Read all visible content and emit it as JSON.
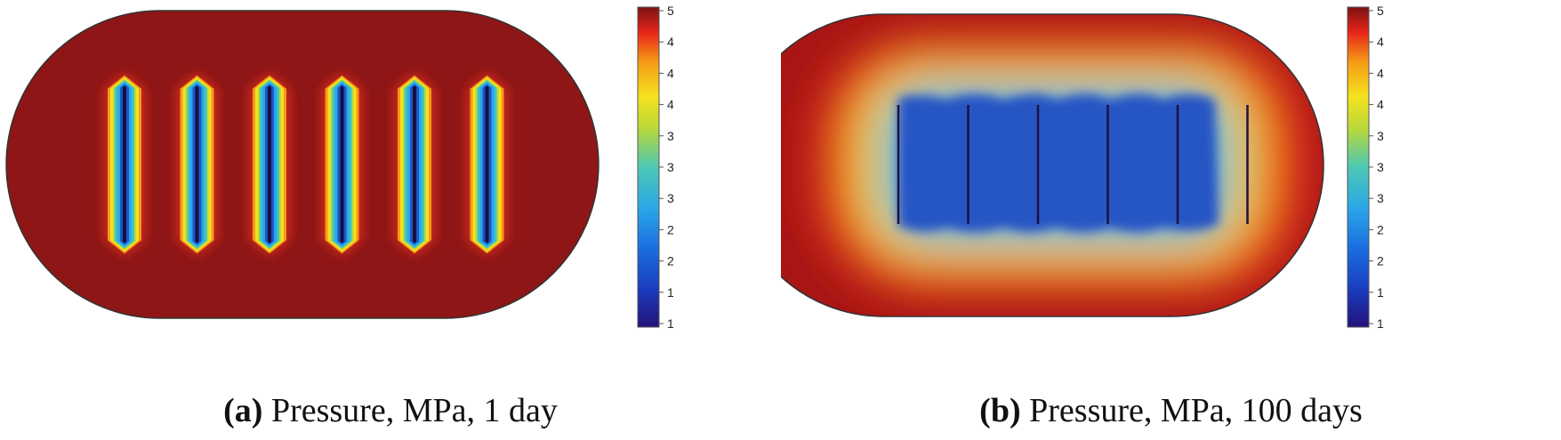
{
  "figure": {
    "panels": [
      {
        "tag": "(a)",
        "caption": "Pressure, MPa, 1 day"
      },
      {
        "tag": "(b)",
        "caption": "Pressure, MPa, 100 days"
      }
    ]
  },
  "chart_data": [
    {
      "type": "heatmap",
      "title": "",
      "quantity": "Pressure",
      "unit": "MPa",
      "time": "1 day",
      "colormap": "jet",
      "colorbar_ticks": [
        "5",
        "4",
        "4",
        "4",
        "3",
        "3",
        "3",
        "2",
        "2",
        "1",
        "1"
      ],
      "range": [
        1,
        5
      ],
      "fracture_count": 6,
      "background_value": 5,
      "fracture_value": 1
    },
    {
      "type": "heatmap",
      "title": "",
      "quantity": "Pressure",
      "unit": "MPa",
      "time": "100 days",
      "colormap": "jet",
      "colorbar_ticks": [
        "5",
        "4",
        "4",
        "4",
        "3",
        "3",
        "3",
        "2",
        "2",
        "1",
        "1"
      ],
      "range": [
        1,
        5
      ],
      "fracture_count": 6,
      "background_value": 5,
      "fracture_value": 1
    }
  ]
}
